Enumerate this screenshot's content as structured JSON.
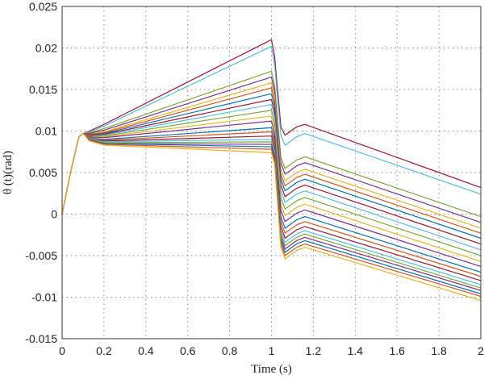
{
  "chart_data": {
    "type": "line",
    "xlabel": "Time (s)",
    "ylabel": "θ (t)(rad)",
    "xlim": [
      0,
      2
    ],
    "ylim": [
      -0.015,
      0.025
    ],
    "xticks": [
      0,
      0.2,
      0.4,
      0.6,
      0.8,
      1,
      1.2,
      1.4,
      1.6,
      1.8,
      2
    ],
    "yticks": [
      -0.015,
      -0.01,
      -0.005,
      0,
      0.005,
      0.01,
      0.015,
      0.02,
      0.025
    ],
    "grid": true,
    "series": [
      {
        "color": "#A2142F",
        "values": [
          [
            0,
            0
          ],
          [
            0.04,
            0.005
          ],
          [
            0.08,
            0.0093
          ],
          [
            0.1,
            0.0097
          ],
          [
            0.13,
            0.01
          ],
          [
            0.2,
            0.0108
          ],
          [
            1.0,
            0.021
          ],
          [
            1.015,
            0.019
          ],
          [
            1.045,
            0.0105
          ],
          [
            1.065,
            0.0095
          ],
          [
            1.12,
            0.0105
          ],
          [
            1.16,
            0.0108
          ],
          [
            2.0,
            0.0032
          ]
        ]
      },
      {
        "color": "#4DBEEE",
        "values": [
          [
            0,
            0
          ],
          [
            0.04,
            0.005
          ],
          [
            0.08,
            0.0093
          ],
          [
            0.1,
            0.0097
          ],
          [
            0.13,
            0.0099
          ],
          [
            0.2,
            0.0106
          ],
          [
            1.0,
            0.0202
          ],
          [
            1.015,
            0.018
          ],
          [
            1.045,
            0.0095
          ],
          [
            1.065,
            0.0083
          ],
          [
            1.12,
            0.0093
          ],
          [
            1.16,
            0.0097
          ],
          [
            2.0,
            0.0024
          ]
        ]
      },
      {
        "color": "#77AC30",
        "values": [
          [
            0,
            0
          ],
          [
            0.04,
            0.005
          ],
          [
            0.08,
            0.0093
          ],
          [
            0.1,
            0.0097
          ],
          [
            0.13,
            0.0098
          ],
          [
            0.2,
            0.0103
          ],
          [
            1.0,
            0.0172
          ],
          [
            1.015,
            0.0155
          ],
          [
            1.045,
            0.0068
          ],
          [
            1.065,
            0.0055
          ],
          [
            1.12,
            0.0065
          ],
          [
            1.16,
            0.0069
          ],
          [
            2.0,
            -0.0003
          ]
        ]
      },
      {
        "color": "#7E2F8E",
        "values": [
          [
            0,
            0
          ],
          [
            0.04,
            0.005
          ],
          [
            0.08,
            0.0093
          ],
          [
            0.1,
            0.0097
          ],
          [
            0.13,
            0.0097
          ],
          [
            0.2,
            0.0101
          ],
          [
            1.0,
            0.0165
          ],
          [
            1.015,
            0.0148
          ],
          [
            1.045,
            0.0062
          ],
          [
            1.065,
            0.0048
          ],
          [
            1.12,
            0.0058
          ],
          [
            1.16,
            0.0062
          ],
          [
            2.0,
            -0.001
          ]
        ]
      },
      {
        "color": "#EDB120",
        "values": [
          [
            0,
            0
          ],
          [
            0.04,
            0.005
          ],
          [
            0.08,
            0.0093
          ],
          [
            0.1,
            0.0097
          ],
          [
            0.13,
            0.0096
          ],
          [
            0.2,
            0.0099
          ],
          [
            1.0,
            0.0158
          ],
          [
            1.015,
            0.0142
          ],
          [
            1.045,
            0.0055
          ],
          [
            1.065,
            0.004
          ],
          [
            1.12,
            0.005
          ],
          [
            1.16,
            0.0054
          ],
          [
            2.0,
            -0.0017
          ]
        ]
      },
      {
        "color": "#D95319",
        "values": [
          [
            0,
            0
          ],
          [
            0.04,
            0.005
          ],
          [
            0.08,
            0.0093
          ],
          [
            0.1,
            0.0097
          ],
          [
            0.13,
            0.0096
          ],
          [
            0.2,
            0.0098
          ],
          [
            1.0,
            0.0152
          ],
          [
            1.015,
            0.0136
          ],
          [
            1.045,
            0.0048
          ],
          [
            1.065,
            0.0034
          ],
          [
            1.12,
            0.0044
          ],
          [
            1.16,
            0.0048
          ],
          [
            2.0,
            -0.0023
          ]
        ]
      },
      {
        "color": "#0072BD",
        "values": [
          [
            0,
            0
          ],
          [
            0.04,
            0.005
          ],
          [
            0.08,
            0.0093
          ],
          [
            0.1,
            0.0097
          ],
          [
            0.13,
            0.0095
          ],
          [
            0.2,
            0.0097
          ],
          [
            1.0,
            0.0145
          ],
          [
            1.015,
            0.013
          ],
          [
            1.045,
            0.0042
          ],
          [
            1.065,
            0.0028
          ],
          [
            1.12,
            0.0038
          ],
          [
            1.16,
            0.0042
          ],
          [
            2.0,
            -0.0029
          ]
        ]
      },
      {
        "color": "#A2142F",
        "values": [
          [
            0,
            0
          ],
          [
            0.04,
            0.005
          ],
          [
            0.08,
            0.0093
          ],
          [
            0.1,
            0.0097
          ],
          [
            0.13,
            0.0095
          ],
          [
            0.2,
            0.0096
          ],
          [
            1.0,
            0.0138
          ],
          [
            1.015,
            0.0123
          ],
          [
            1.045,
            0.0035
          ],
          [
            1.065,
            0.0021
          ],
          [
            1.12,
            0.0031
          ],
          [
            1.16,
            0.0035
          ],
          [
            2.0,
            -0.0036
          ]
        ]
      },
      {
        "color": "#4DBEEE",
        "values": [
          [
            0,
            0
          ],
          [
            0.04,
            0.005
          ],
          [
            0.08,
            0.0093
          ],
          [
            0.1,
            0.0097
          ],
          [
            0.13,
            0.0094
          ],
          [
            0.2,
            0.0095
          ],
          [
            1.0,
            0.0132
          ],
          [
            1.015,
            0.0117
          ],
          [
            1.045,
            0.0028
          ],
          [
            1.065,
            0.0014
          ],
          [
            1.12,
            0.0024
          ],
          [
            1.16,
            0.0028
          ],
          [
            2.0,
            -0.0043
          ]
        ]
      },
      {
        "color": "#77AC30",
        "values": [
          [
            0,
            0
          ],
          [
            0.04,
            0.005
          ],
          [
            0.08,
            0.0093
          ],
          [
            0.1,
            0.0097
          ],
          [
            0.13,
            0.0094
          ],
          [
            0.2,
            0.0094
          ],
          [
            1.0,
            0.0125
          ],
          [
            1.015,
            0.011
          ],
          [
            1.045,
            0.002
          ],
          [
            1.065,
            0.0006
          ],
          [
            1.12,
            0.0016
          ],
          [
            1.16,
            0.002
          ],
          [
            2.0,
            -0.005
          ]
        ]
      },
      {
        "color": "#EDB120",
        "values": [
          [
            0,
            0
          ],
          [
            0.04,
            0.005
          ],
          [
            0.08,
            0.0093
          ],
          [
            0.1,
            0.0097
          ],
          [
            0.13,
            0.0093
          ],
          [
            0.2,
            0.0093
          ],
          [
            1.0,
            0.0118
          ],
          [
            1.015,
            0.0103
          ],
          [
            1.045,
            0.0012
          ],
          [
            1.065,
            -0.0002
          ],
          [
            1.12,
            0.0008
          ],
          [
            1.16,
            0.0012
          ],
          [
            2.0,
            -0.0057
          ]
        ]
      },
      {
        "color": "#7E2F8E",
        "values": [
          [
            0,
            0
          ],
          [
            0.04,
            0.005
          ],
          [
            0.08,
            0.0093
          ],
          [
            0.1,
            0.0097
          ],
          [
            0.13,
            0.0093
          ],
          [
            0.2,
            0.0092
          ],
          [
            1.0,
            0.0112
          ],
          [
            1.015,
            0.0097
          ],
          [
            1.045,
            0.0005
          ],
          [
            1.065,
            -0.0009
          ],
          [
            1.12,
            0.0001
          ],
          [
            1.16,
            0.0005
          ],
          [
            2.0,
            -0.0063
          ]
        ]
      },
      {
        "color": "#0072BD",
        "values": [
          [
            0,
            0
          ],
          [
            0.04,
            0.005
          ],
          [
            0.08,
            0.0093
          ],
          [
            0.1,
            0.0097
          ],
          [
            0.13,
            0.0092
          ],
          [
            0.2,
            0.009
          ],
          [
            1.0,
            0.0104
          ],
          [
            1.015,
            0.009
          ],
          [
            1.045,
            -0.0003
          ],
          [
            1.065,
            -0.0017
          ],
          [
            1.12,
            -0.0007
          ],
          [
            1.16,
            -0.0003
          ],
          [
            2.0,
            -0.007
          ]
        ]
      },
      {
        "color": "#D95319",
        "values": [
          [
            0,
            0
          ],
          [
            0.04,
            0.005
          ],
          [
            0.08,
            0.0093
          ],
          [
            0.1,
            0.0097
          ],
          [
            0.13,
            0.0092
          ],
          [
            0.2,
            0.0089
          ],
          [
            1.0,
            0.0099
          ],
          [
            1.015,
            0.0085
          ],
          [
            1.045,
            -0.0009
          ],
          [
            1.065,
            -0.0023
          ],
          [
            1.12,
            -0.0013
          ],
          [
            1.16,
            -0.0009
          ],
          [
            2.0,
            -0.0075
          ]
        ]
      },
      {
        "color": "#A2142F",
        "values": [
          [
            0,
            0
          ],
          [
            0.04,
            0.005
          ],
          [
            0.08,
            0.0093
          ],
          [
            0.1,
            0.0097
          ],
          [
            0.13,
            0.0091
          ],
          [
            0.2,
            0.0088
          ],
          [
            1.0,
            0.0094
          ],
          [
            1.015,
            0.008
          ],
          [
            1.045,
            -0.0015
          ],
          [
            1.065,
            -0.0029
          ],
          [
            1.12,
            -0.0019
          ],
          [
            1.16,
            -0.0015
          ],
          [
            2.0,
            -0.008
          ]
        ]
      },
      {
        "color": "#4DBEEE",
        "values": [
          [
            0,
            0
          ],
          [
            0.04,
            0.005
          ],
          [
            0.08,
            0.0093
          ],
          [
            0.1,
            0.0097
          ],
          [
            0.13,
            0.0091
          ],
          [
            0.2,
            0.0087
          ],
          [
            1.0,
            0.009
          ],
          [
            1.015,
            0.0076
          ],
          [
            1.045,
            -0.002
          ],
          [
            1.065,
            -0.0034
          ],
          [
            1.12,
            -0.0024
          ],
          [
            1.16,
            -0.002
          ],
          [
            2.0,
            -0.0085
          ]
        ]
      },
      {
        "color": "#77AC30",
        "values": [
          [
            0,
            0
          ],
          [
            0.04,
            0.005
          ],
          [
            0.08,
            0.0093
          ],
          [
            0.1,
            0.0097
          ],
          [
            0.13,
            0.009
          ],
          [
            0.2,
            0.0086
          ],
          [
            1.0,
            0.0087
          ],
          [
            1.015,
            0.0073
          ],
          [
            1.045,
            -0.0024
          ],
          [
            1.065,
            -0.0038
          ],
          [
            1.12,
            -0.0028
          ],
          [
            1.16,
            -0.0024
          ],
          [
            2.0,
            -0.0089
          ]
        ]
      },
      {
        "color": "#7E2F8E",
        "values": [
          [
            0,
            0
          ],
          [
            0.04,
            0.005
          ],
          [
            0.08,
            0.0093
          ],
          [
            0.1,
            0.0097
          ],
          [
            0.13,
            0.009
          ],
          [
            0.2,
            0.0085
          ],
          [
            1.0,
            0.0084
          ],
          [
            1.015,
            0.007
          ],
          [
            1.045,
            -0.0028
          ],
          [
            1.065,
            -0.0042
          ],
          [
            1.12,
            -0.0032
          ],
          [
            1.16,
            -0.0028
          ],
          [
            2.0,
            -0.0092
          ]
        ]
      },
      {
        "color": "#0072BD",
        "values": [
          [
            0,
            0
          ],
          [
            0.04,
            0.005
          ],
          [
            0.08,
            0.0093
          ],
          [
            0.1,
            0.0097
          ],
          [
            0.13,
            0.0089
          ],
          [
            0.2,
            0.0085
          ],
          [
            1.0,
            0.0081
          ],
          [
            1.015,
            0.0067
          ],
          [
            1.045,
            -0.0032
          ],
          [
            1.065,
            -0.0046
          ],
          [
            1.12,
            -0.0036
          ],
          [
            1.16,
            -0.0032
          ],
          [
            2.0,
            -0.0096
          ]
        ]
      },
      {
        "color": "#D95319",
        "values": [
          [
            0,
            0
          ],
          [
            0.04,
            0.005
          ],
          [
            0.08,
            0.0093
          ],
          [
            0.1,
            0.0097
          ],
          [
            0.13,
            0.0089
          ],
          [
            0.2,
            0.0084
          ],
          [
            1.0,
            0.0078
          ],
          [
            1.015,
            0.0064
          ],
          [
            1.045,
            -0.0036
          ],
          [
            1.065,
            -0.005
          ],
          [
            1.12,
            -0.004
          ],
          [
            1.16,
            -0.0036
          ],
          [
            2.0,
            -0.0099
          ]
        ]
      },
      {
        "color": "#EDB120",
        "values": [
          [
            0,
            0
          ],
          [
            0.04,
            0.005
          ],
          [
            0.08,
            0.0093
          ],
          [
            0.1,
            0.0097
          ],
          [
            0.13,
            0.0088
          ],
          [
            0.2,
            0.0083
          ],
          [
            1.0,
            0.0074
          ],
          [
            1.015,
            0.006
          ],
          [
            1.045,
            -0.004
          ],
          [
            1.065,
            -0.0054
          ],
          [
            1.12,
            -0.0044
          ],
          [
            1.16,
            -0.004
          ],
          [
            2.0,
            -0.0104
          ]
        ]
      }
    ]
  }
}
